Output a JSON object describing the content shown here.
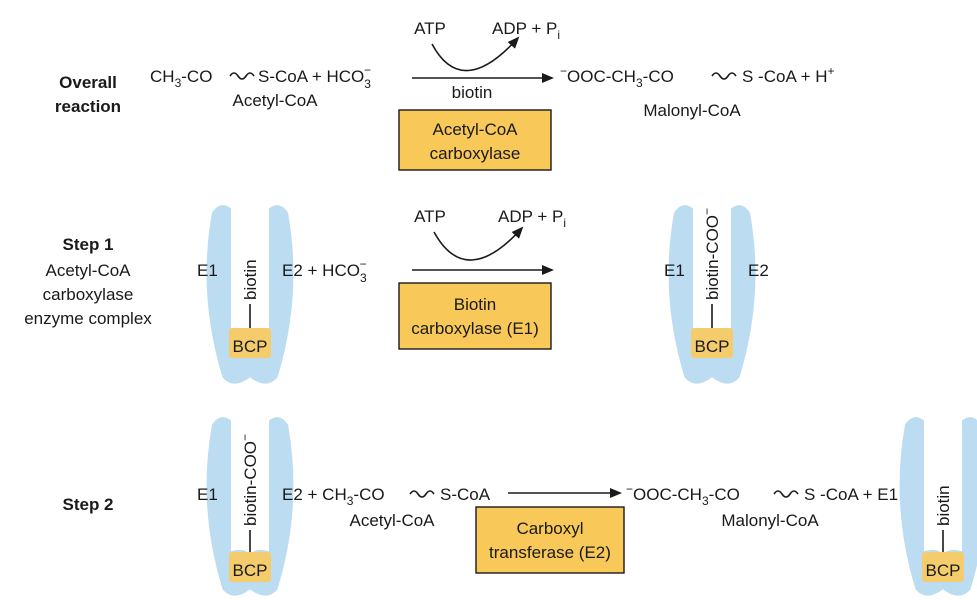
{
  "labels": {
    "overall_l1": "Overall",
    "overall_l2": "reaction",
    "step1": "Step 1",
    "step1_d1": "Acetyl-CoA",
    "step1_d2": "carboxylase",
    "step1_d3": "enzyme complex",
    "step2": "Step 2"
  },
  "overall": {
    "ch": "CH",
    "sub3": "3",
    "co": "-CO",
    "scoa": "S-CoA + HCO",
    "hco_sub": "3",
    "hco_sup": "−",
    "acetyl": "Acetyl-CoA",
    "atp": "ATP",
    "adp": "ADP + P",
    "pi_sub": "i",
    "biotin": "biotin",
    "prod_minus": "−",
    "prod_ooc": "OOC-CH",
    "prod_sub3": "3",
    "prod_co": "-CO",
    "prod_scoa": "S -CoA + H",
    "prod_plus": "+",
    "malonyl": "Malonyl-CoA",
    "box_l1": "Acetyl-CoA",
    "box_l2": "carboxylase"
  },
  "step1_rx": {
    "e1": "E1",
    "biotin": "biotin",
    "e2": "E2 + HCO",
    "hco_sub": "3",
    "hco_sup": "−",
    "bcp": "BCP",
    "atp": "ATP",
    "adp": "ADP + P",
    "pi_sub": "i",
    "box_l1": "Biotin",
    "box_l2": "carboxylase (E1)",
    "r_e1": "E1",
    "r_biotin": "biotin-COO",
    "r_minus": "−",
    "r_e2": "E2",
    "r_bcp": "BCP"
  },
  "step2_rx": {
    "e1": "E1",
    "biotin": "biotin-COO",
    "minus": "−",
    "bcp": "BCP",
    "e2": "E2 + CH",
    "sub3": "3",
    "co": "-CO",
    "scoa": "S-CoA",
    "acetyl": "Acetyl-CoA",
    "prod_minus": "−",
    "prod_ooc": "OOC-CH",
    "prod_sub3": "3",
    "prod_co": "-CO",
    "prod_scoa": "S -CoA + E1",
    "malonyl": "Malonyl-CoA",
    "box_l1": "Carboxyl",
    "box_l2": "transferase (E2)",
    "r_biotin": "biotin",
    "r_bcp": "BCP"
  },
  "colors": {
    "enzyme": "#bcdcf2",
    "bcp": "#f4cc6c",
    "box": "#f8c858"
  }
}
